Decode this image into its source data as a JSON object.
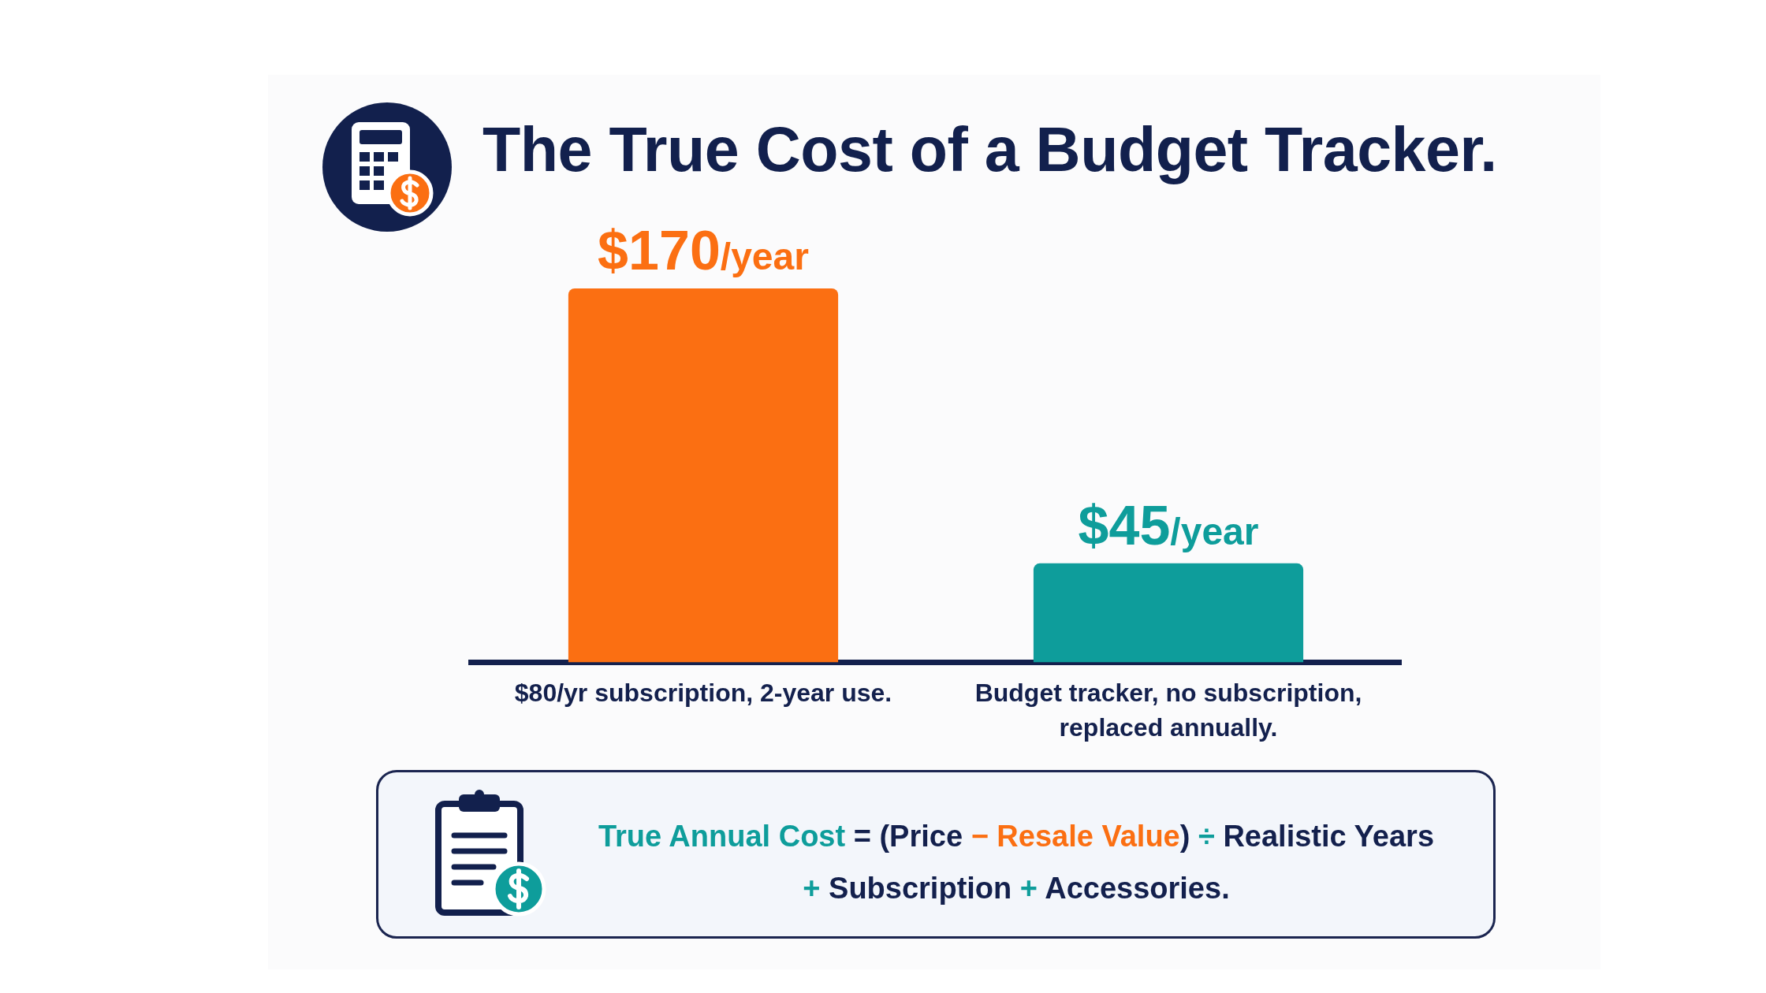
{
  "chart_data": {
    "type": "bar",
    "title": "The True Cost of a Budget Tracker.",
    "categories": [
      "$80/yr subscription, 2-year use.",
      "Budget tracker, no subscription, replaced annually."
    ],
    "values": [
      170,
      45
    ],
    "colors": [
      "#fb6f12",
      "#0e9d9b"
    ],
    "value_labels": [
      "$170/year",
      "$45/year"
    ],
    "annotations": [
      "True Annual Cost = (Price − Resale Value) ÷ Realistic Years + Subscription + Accessories."
    ],
    "tick_labels": "x",
    "grid": false,
    "legend": false
  }
}
